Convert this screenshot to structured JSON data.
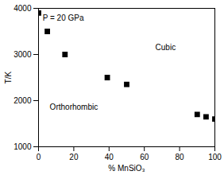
{
  "chart_data": {
    "type": "scatter",
    "x_label": "% MnSiO₃",
    "y_label": "T/K",
    "x": [
      0,
      5,
      15,
      39,
      50,
      90,
      95,
      100
    ],
    "values": [
      3900,
      3500,
      3000,
      2500,
      2350,
      1700,
      1650,
      1600
    ],
    "color": "#000000",
    "marker": "square",
    "xlim": [
      0,
      100
    ],
    "xticks": [
      0,
      20,
      40,
      60,
      80,
      100
    ],
    "ylim": [
      1000,
      4000
    ],
    "yticks": [
      1000,
      2000,
      3000,
      4000
    ],
    "grid": false,
    "annotations": [
      {
        "text": "P = 20 GPa",
        "x": 14,
        "y": 3780
      },
      {
        "text": "Cubic",
        "x": 72,
        "y": 3150
      },
      {
        "text": "Orthorhombic",
        "x": 20,
        "y": 1850
      }
    ]
  }
}
